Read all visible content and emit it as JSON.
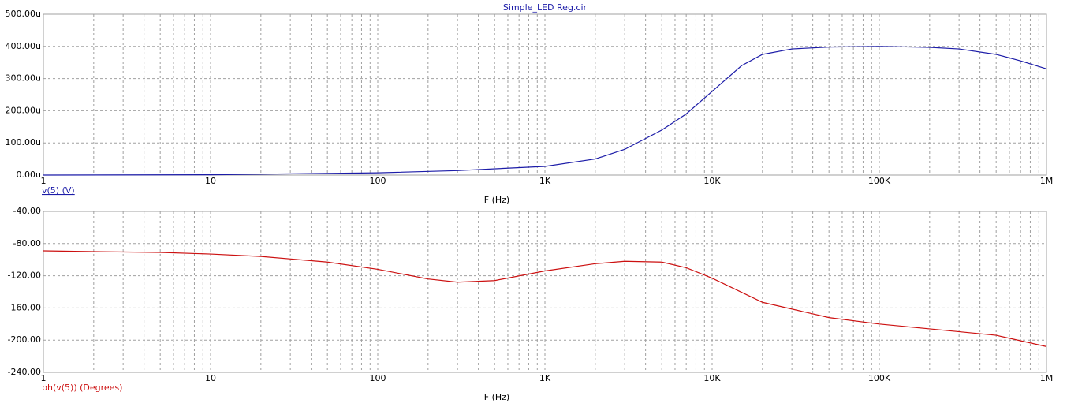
{
  "chart_data": [
    {
      "type": "line",
      "title": "Simple_LED Reg.cir",
      "xlabel": "F (Hz)",
      "xscale": "log",
      "grid": true,
      "xlim": [
        1,
        1000000
      ],
      "xticks": [
        1,
        10,
        100,
        {
          "value": 1000,
          "label": "1K"
        },
        {
          "value": 10000,
          "label": "10K"
        },
        {
          "value": 100000,
          "label": "100K"
        },
        {
          "value": 1000000,
          "label": "1M"
        }
      ],
      "ylim": [
        0,
        500
      ],
      "yticks": [
        {
          "value": 0,
          "label": "0.00u"
        },
        {
          "value": 100,
          "label": "100.00u"
        },
        {
          "value": 200,
          "label": "200.00u"
        },
        {
          "value": 300,
          "label": "300.00u"
        },
        {
          "value": 400,
          "label": "400.00u"
        },
        {
          "value": 500,
          "label": "500.00u"
        }
      ],
      "x": [
        1,
        10,
        100,
        300,
        1000,
        2000,
        3000,
        5000,
        7000,
        10000,
        15000,
        20000,
        30000,
        50000,
        100000,
        200000,
        300000,
        500000,
        700000,
        1000000
      ],
      "series": [
        {
          "name": "v(5) (V)",
          "color": "#1c1ca8",
          "values": [
            0,
            1,
            7,
            14,
            27,
            50,
            80,
            140,
            190,
            260,
            340,
            375,
            392,
            398,
            400,
            397,
            392,
            375,
            355,
            330
          ]
        }
      ]
    },
    {
      "type": "line",
      "xlabel": "F (Hz)",
      "xscale": "log",
      "grid": true,
      "xlim": [
        1,
        1000000
      ],
      "xticks": [
        1,
        10,
        100,
        {
          "value": 1000,
          "label": "1K"
        },
        {
          "value": 10000,
          "label": "10K"
        },
        {
          "value": 100000,
          "label": "100K"
        },
        {
          "value": 1000000,
          "label": "1M"
        }
      ],
      "ylim": [
        -240,
        -40
      ],
      "yticks": [
        {
          "value": -240,
          "label": "-240.00"
        },
        {
          "value": -200,
          "label": "-200.00"
        },
        {
          "value": -160,
          "label": "-160.00"
        },
        {
          "value": -120,
          "label": "-120.00"
        },
        {
          "value": -80,
          "label": "-80.00"
        },
        {
          "value": -40,
          "label": "-40.00"
        }
      ],
      "x": [
        1,
        2,
        5,
        10,
        20,
        50,
        100,
        200,
        300,
        500,
        1000,
        2000,
        3000,
        5000,
        7000,
        10000,
        20000,
        50000,
        100000,
        200000,
        500000,
        1000000
      ],
      "series": [
        {
          "name": "ph(v(5)) (Degrees)",
          "color": "#cc1010",
          "values": [
            -89,
            -90,
            -91,
            -93,
            -96,
            -103,
            -112,
            -124,
            -128,
            -126,
            -114,
            -105,
            -102,
            -103,
            -110,
            -123,
            -153,
            -172,
            -180,
            -186,
            -194,
            -208
          ]
        }
      ]
    }
  ]
}
